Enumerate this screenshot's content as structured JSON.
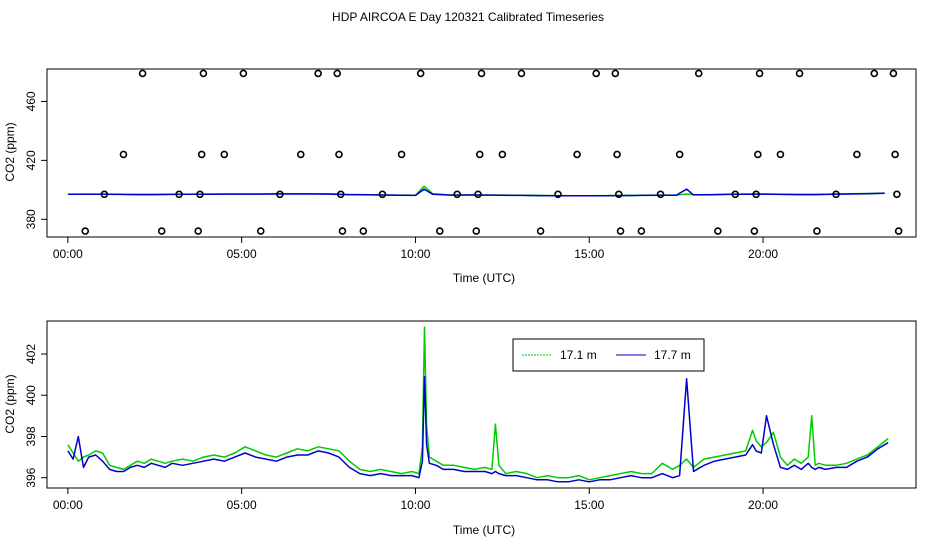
{
  "figure": {
    "title": "HDP AIRCOA E  Day 120321  Calibrated Timeseries"
  },
  "chart_data": [
    {
      "type": "scatter",
      "xlabel": "Time (UTC)",
      "ylabel": "CO2 (ppm)",
      "xlim": [
        -0.6,
        24.4
      ],
      "ylim": [
        368,
        482
      ],
      "x_ticks": [
        0,
        5,
        10,
        15,
        20
      ],
      "x_tick_labels": [
        "00:00",
        "05:00",
        "10:00",
        "15:00",
        "20:00"
      ],
      "y_ticks": [
        380,
        420,
        460
      ],
      "y_tick_labels": [
        "380",
        "420",
        "460"
      ],
      "points": [
        [
          0.5,
          372
        ],
        [
          1.05,
          397
        ],
        [
          1.6,
          424
        ],
        [
          2.15,
          479
        ],
        [
          2.7,
          372
        ],
        [
          3.2,
          397
        ],
        [
          3.75,
          372
        ],
        [
          3.8,
          397
        ],
        [
          3.85,
          424
        ],
        [
          3.9,
          479
        ],
        [
          4.5,
          424
        ],
        [
          5.05,
          479
        ],
        [
          5.55,
          372
        ],
        [
          6.1,
          397
        ],
        [
          6.7,
          424
        ],
        [
          7.2,
          479
        ],
        [
          7.75,
          479
        ],
        [
          7.8,
          424
        ],
        [
          7.85,
          397
        ],
        [
          7.9,
          372
        ],
        [
          8.5,
          372
        ],
        [
          9.05,
          397
        ],
        [
          9.6,
          424
        ],
        [
          10.15,
          479
        ],
        [
          10.7,
          372
        ],
        [
          11.2,
          397
        ],
        [
          11.75,
          372
        ],
        [
          11.8,
          397
        ],
        [
          11.85,
          424
        ],
        [
          11.9,
          479
        ],
        [
          12.5,
          424
        ],
        [
          13.05,
          479
        ],
        [
          13.6,
          372
        ],
        [
          14.1,
          397
        ],
        [
          14.65,
          424
        ],
        [
          15.2,
          479
        ],
        [
          15.75,
          479
        ],
        [
          15.8,
          424
        ],
        [
          15.85,
          397
        ],
        [
          15.9,
          372
        ],
        [
          16.5,
          372
        ],
        [
          17.05,
          397
        ],
        [
          17.6,
          424
        ],
        [
          18.15,
          479
        ],
        [
          18.7,
          372
        ],
        [
          19.2,
          397
        ],
        [
          19.75,
          372
        ],
        [
          19.8,
          397
        ],
        [
          19.85,
          424
        ],
        [
          19.9,
          479
        ],
        [
          20.5,
          424
        ],
        [
          21.05,
          479
        ],
        [
          21.55,
          372
        ],
        [
          22.1,
          397
        ],
        [
          22.7,
          424
        ],
        [
          23.2,
          479
        ],
        [
          23.75,
          479
        ],
        [
          23.8,
          424
        ],
        [
          23.85,
          397
        ],
        [
          23.9,
          372
        ]
      ],
      "series": [
        {
          "name": "17.1 m",
          "color": "#00cc00",
          "x": [
            0,
            0.5,
            1,
            1.5,
            2,
            2.5,
            3,
            3.5,
            4,
            4.5,
            5,
            5.5,
            6,
            6.5,
            7,
            7.5,
            8,
            8.5,
            9,
            9.5,
            10,
            10.25,
            10.5,
            11,
            11.5,
            12,
            12.5,
            13,
            13.5,
            14,
            14.5,
            15,
            15.5,
            16,
            16.5,
            17,
            17.5,
            17.8,
            18,
            18.5,
            19,
            19.5,
            20,
            20.5,
            21,
            21.5,
            22,
            22.5,
            23,
            23.5
          ],
          "y": [
            397.0,
            397.1,
            397.1,
            397.0,
            396.9,
            396.9,
            397.0,
            397.0,
            397.1,
            397.2,
            397.2,
            397.2,
            397.3,
            397.3,
            397.4,
            397.3,
            396.9,
            396.8,
            396.6,
            396.4,
            396.3,
            402.5,
            397.3,
            396.5,
            396.6,
            396.5,
            396.4,
            396.3,
            396.2,
            396.1,
            396.0,
            396.0,
            396.1,
            396.2,
            396.3,
            396.4,
            396.4,
            397.2,
            396.7,
            396.8,
            397.0,
            397.1,
            397.2,
            397.0,
            396.9,
            396.9,
            397.1,
            397.3,
            397.5,
            397.8
          ]
        },
        {
          "name": "17.7 m",
          "color": "#0000cc",
          "x": [
            0,
            0.5,
            1,
            1.5,
            2,
            2.5,
            3,
            3.5,
            4,
            4.5,
            5,
            5.5,
            6,
            6.5,
            7,
            7.5,
            8,
            8.5,
            9,
            9.5,
            10,
            10.25,
            10.5,
            11,
            11.5,
            12,
            12.5,
            13,
            13.5,
            14,
            14.5,
            15,
            15.5,
            16,
            16.5,
            17,
            17.5,
            17.8,
            18,
            18.5,
            19,
            19.5,
            20,
            20.5,
            21,
            21.5,
            22,
            22.5,
            23,
            23.5
          ],
          "y": [
            397.0,
            397.0,
            397.0,
            396.9,
            396.8,
            396.8,
            396.9,
            397.0,
            397.0,
            397.1,
            397.1,
            397.1,
            397.2,
            397.2,
            397.2,
            397.1,
            396.8,
            396.7,
            396.5,
            396.3,
            396.2,
            400.5,
            397.0,
            396.4,
            396.5,
            396.4,
            396.3,
            396.2,
            396.1,
            396.0,
            396.0,
            396.0,
            396.0,
            396.1,
            396.2,
            396.3,
            396.3,
            400.5,
            396.6,
            396.7,
            396.9,
            397.0,
            397.1,
            396.9,
            396.8,
            396.8,
            397.0,
            397.2,
            397.4,
            397.7
          ]
        }
      ]
    },
    {
      "type": "line",
      "xlabel": "Time (UTC)",
      "ylabel": "CO2 (ppm)",
      "xlim": [
        -0.6,
        24.4
      ],
      "ylim": [
        395.5,
        403.6
      ],
      "x_ticks": [
        0,
        5,
        10,
        15,
        20
      ],
      "x_tick_labels": [
        "00:00",
        "05:00",
        "10:00",
        "15:00",
        "20:00"
      ],
      "y_ticks": [
        396,
        398,
        400,
        402
      ],
      "y_tick_labels": [
        "396",
        "398",
        "400",
        "402"
      ],
      "legend": "top-right",
      "series": [
        {
          "name": "17.1 m",
          "color": "#00cc00",
          "x": [
            0,
            0.15,
            0.3,
            0.45,
            0.6,
            0.8,
            1.0,
            1.2,
            1.4,
            1.6,
            1.8,
            2.0,
            2.2,
            2.4,
            2.6,
            2.8,
            3.0,
            3.3,
            3.6,
            3.9,
            4.2,
            4.5,
            4.8,
            5.1,
            5.4,
            5.7,
            6.0,
            6.3,
            6.6,
            6.9,
            7.2,
            7.5,
            7.8,
            8.1,
            8.4,
            8.7,
            9.0,
            9.3,
            9.6,
            9.9,
            10.1,
            10.2,
            10.26,
            10.32,
            10.4,
            10.6,
            10.8,
            11.1,
            11.4,
            11.7,
            12.0,
            12.2,
            12.3,
            12.4,
            12.6,
            12.9,
            13.2,
            13.5,
            13.8,
            14.1,
            14.4,
            14.7,
            15.0,
            15.3,
            15.6,
            15.9,
            16.2,
            16.5,
            16.8,
            17.1,
            17.4,
            17.6,
            17.8,
            18.0,
            18.3,
            18.6,
            18.9,
            19.2,
            19.5,
            19.7,
            19.8,
            19.95,
            20.1,
            20.3,
            20.5,
            20.7,
            20.9,
            21.1,
            21.3,
            21.4,
            21.5,
            21.6,
            21.8,
            22.1,
            22.4,
            22.7,
            23.0,
            23.3,
            23.6
          ],
          "y": [
            397.6,
            397.2,
            396.8,
            397.0,
            397.1,
            397.3,
            397.2,
            396.6,
            396.5,
            396.4,
            396.6,
            396.8,
            396.7,
            396.9,
            396.8,
            396.7,
            396.8,
            396.9,
            396.8,
            397.0,
            397.1,
            397.0,
            397.2,
            397.5,
            397.3,
            397.1,
            397.0,
            397.2,
            397.4,
            397.3,
            397.5,
            397.4,
            397.3,
            396.8,
            396.4,
            396.3,
            396.4,
            396.3,
            396.2,
            396.3,
            396.2,
            397.5,
            403.3,
            398.5,
            397.0,
            396.8,
            396.6,
            396.6,
            396.5,
            396.4,
            396.5,
            396.4,
            398.6,
            396.6,
            396.2,
            396.3,
            396.2,
            396.0,
            396.1,
            396.0,
            396.0,
            396.1,
            395.9,
            396.0,
            396.1,
            396.2,
            396.3,
            396.2,
            396.2,
            396.7,
            396.4,
            396.6,
            396.9,
            396.5,
            396.9,
            397.0,
            397.1,
            397.2,
            397.3,
            398.3,
            397.8,
            397.5,
            397.7,
            398.2,
            397.0,
            396.6,
            396.9,
            396.7,
            397.0,
            399.0,
            396.6,
            396.7,
            396.6,
            396.6,
            396.7,
            396.9,
            397.1,
            397.5,
            397.9
          ]
        },
        {
          "name": "17.7 m",
          "color": "#0000cc",
          "x": [
            0,
            0.15,
            0.3,
            0.45,
            0.6,
            0.8,
            1.0,
            1.2,
            1.4,
            1.6,
            1.8,
            2.0,
            2.2,
            2.4,
            2.6,
            2.8,
            3.0,
            3.3,
            3.6,
            3.9,
            4.2,
            4.5,
            4.8,
            5.1,
            5.4,
            5.7,
            6.0,
            6.3,
            6.6,
            6.9,
            7.2,
            7.5,
            7.8,
            8.1,
            8.4,
            8.7,
            9.0,
            9.3,
            9.6,
            9.9,
            10.1,
            10.2,
            10.26,
            10.32,
            10.4,
            10.6,
            10.8,
            11.1,
            11.4,
            11.7,
            12.0,
            12.2,
            12.3,
            12.4,
            12.6,
            12.9,
            13.2,
            13.5,
            13.8,
            14.1,
            14.4,
            14.7,
            15.0,
            15.3,
            15.6,
            15.9,
            16.2,
            16.5,
            16.8,
            17.1,
            17.4,
            17.6,
            17.8,
            18.0,
            18.3,
            18.6,
            18.9,
            19.2,
            19.5,
            19.7,
            19.8,
            19.95,
            20.1,
            20.3,
            20.5,
            20.7,
            20.9,
            21.1,
            21.3,
            21.4,
            21.5,
            21.6,
            21.8,
            22.1,
            22.4,
            22.7,
            23.0,
            23.3,
            23.6
          ],
          "y": [
            397.3,
            396.9,
            398.0,
            396.5,
            397.0,
            397.1,
            396.8,
            396.4,
            396.3,
            396.3,
            396.5,
            396.6,
            396.5,
            396.7,
            396.6,
            396.5,
            396.7,
            396.6,
            396.7,
            396.8,
            396.9,
            396.8,
            397.0,
            397.2,
            397.0,
            396.9,
            396.8,
            397.0,
            397.1,
            397.1,
            397.3,
            397.2,
            397.0,
            396.5,
            396.2,
            396.1,
            396.2,
            396.1,
            396.1,
            396.1,
            396.0,
            396.8,
            400.9,
            397.6,
            396.7,
            396.6,
            396.4,
            396.4,
            396.3,
            396.3,
            396.3,
            396.2,
            396.3,
            396.2,
            396.1,
            396.1,
            396.0,
            395.9,
            395.9,
            395.8,
            395.8,
            395.9,
            395.8,
            395.9,
            395.9,
            396.0,
            396.1,
            396.0,
            396.0,
            396.2,
            396.0,
            396.1,
            400.8,
            396.3,
            396.6,
            396.8,
            396.9,
            397.0,
            397.1,
            397.6,
            397.3,
            397.2,
            399.0,
            397.6,
            396.5,
            396.4,
            396.6,
            396.4,
            396.7,
            396.5,
            396.4,
            396.5,
            396.4,
            396.5,
            396.5,
            396.8,
            397.0,
            397.4,
            397.7
          ]
        }
      ]
    }
  ]
}
